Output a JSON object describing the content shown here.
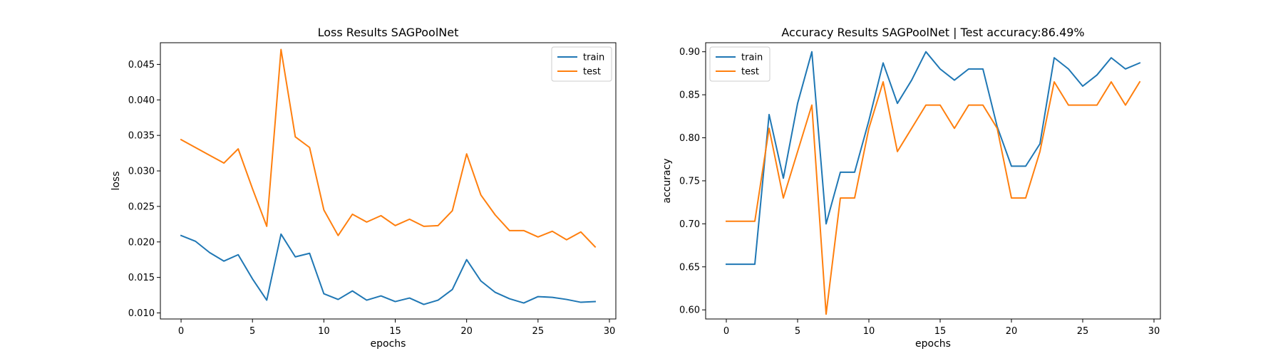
{
  "chart_data": [
    {
      "type": "line",
      "title": "Loss Results SAGPoolNet",
      "xlabel": "epochs",
      "ylabel": "loss",
      "xlim": [
        -1.45,
        30.45
      ],
      "ylim": [
        0.00915,
        0.04805
      ],
      "xticks": [
        0,
        5,
        10,
        15,
        20,
        25,
        30
      ],
      "yticks": [
        0.01,
        0.015,
        0.02,
        0.025,
        0.03,
        0.035,
        0.04,
        0.045
      ],
      "ytick_labels": [
        "0.010",
        "0.015",
        "0.020",
        "0.025",
        "0.030",
        "0.035",
        "0.040",
        "0.045"
      ],
      "legend": "top-right",
      "grid": false,
      "x": [
        0,
        1,
        2,
        3,
        4,
        5,
        6,
        7,
        8,
        9,
        10,
        11,
        12,
        13,
        14,
        15,
        16,
        17,
        18,
        19,
        20,
        21,
        22,
        23,
        24,
        25,
        26,
        27,
        28,
        29
      ],
      "series": [
        {
          "name": "train",
          "color": "#1f77b4",
          "values": [
            0.0209,
            0.0201,
            0.0185,
            0.0173,
            0.0182,
            0.0148,
            0.0118,
            0.0211,
            0.0179,
            0.0184,
            0.0127,
            0.0119,
            0.0131,
            0.0118,
            0.0124,
            0.0116,
            0.0121,
            0.0112,
            0.0118,
            0.0133,
            0.0175,
            0.0145,
            0.0129,
            0.012,
            0.0114,
            0.0123,
            0.0122,
            0.0119,
            0.0115,
            0.0116
          ]
        },
        {
          "name": "test",
          "color": "#ff7f0e",
          "values": [
            0.0344,
            0.0333,
            0.0322,
            0.0311,
            0.0331,
            0.0275,
            0.0222,
            0.0471,
            0.0348,
            0.0333,
            0.0245,
            0.0209,
            0.0239,
            0.0228,
            0.0237,
            0.0223,
            0.0232,
            0.0222,
            0.0223,
            0.0244,
            0.0324,
            0.0266,
            0.0238,
            0.0216,
            0.0216,
            0.0207,
            0.0215,
            0.0203,
            0.0214,
            0.0193
          ]
        }
      ]
    },
    {
      "type": "line",
      "title": "Accuracy Results SAGPoolNet | Test accuracy:86.49%",
      "xlabel": "epochs",
      "ylabel": "accuracy",
      "xlim": [
        -1.45,
        30.45
      ],
      "ylim": [
        0.5894,
        0.9105
      ],
      "xticks": [
        0,
        5,
        10,
        15,
        20,
        25,
        30
      ],
      "yticks": [
        0.6,
        0.65,
        0.7,
        0.75,
        0.8,
        0.85,
        0.9
      ],
      "ytick_labels": [
        "0.60",
        "0.65",
        "0.70",
        "0.75",
        "0.80",
        "0.85",
        "0.90"
      ],
      "legend": "top-left",
      "grid": false,
      "x": [
        0,
        1,
        2,
        3,
        4,
        5,
        6,
        7,
        8,
        9,
        10,
        11,
        12,
        13,
        14,
        15,
        16,
        17,
        18,
        19,
        20,
        21,
        22,
        23,
        24,
        25,
        26,
        27,
        28,
        29
      ],
      "series": [
        {
          "name": "train",
          "color": "#1f77b4",
          "values": [
            0.653,
            0.653,
            0.653,
            0.827,
            0.753,
            0.84,
            0.9,
            0.7,
            0.76,
            0.76,
            0.82,
            0.887,
            0.84,
            0.867,
            0.9,
            0.88,
            0.867,
            0.88,
            0.88,
            0.813,
            0.767,
            0.767,
            0.793,
            0.893,
            0.88,
            0.86,
            0.873,
            0.893,
            0.88,
            0.887
          ]
        },
        {
          "name": "test",
          "color": "#ff7f0e",
          "values": [
            0.703,
            0.703,
            0.703,
            0.811,
            0.73,
            0.784,
            0.838,
            0.595,
            0.73,
            0.73,
            0.811,
            0.865,
            0.784,
            0.811,
            0.838,
            0.838,
            0.811,
            0.838,
            0.838,
            0.811,
            0.73,
            0.73,
            0.784,
            0.865,
            0.838,
            0.838,
            0.838,
            0.865,
            0.838,
            0.865
          ]
        }
      ]
    }
  ]
}
